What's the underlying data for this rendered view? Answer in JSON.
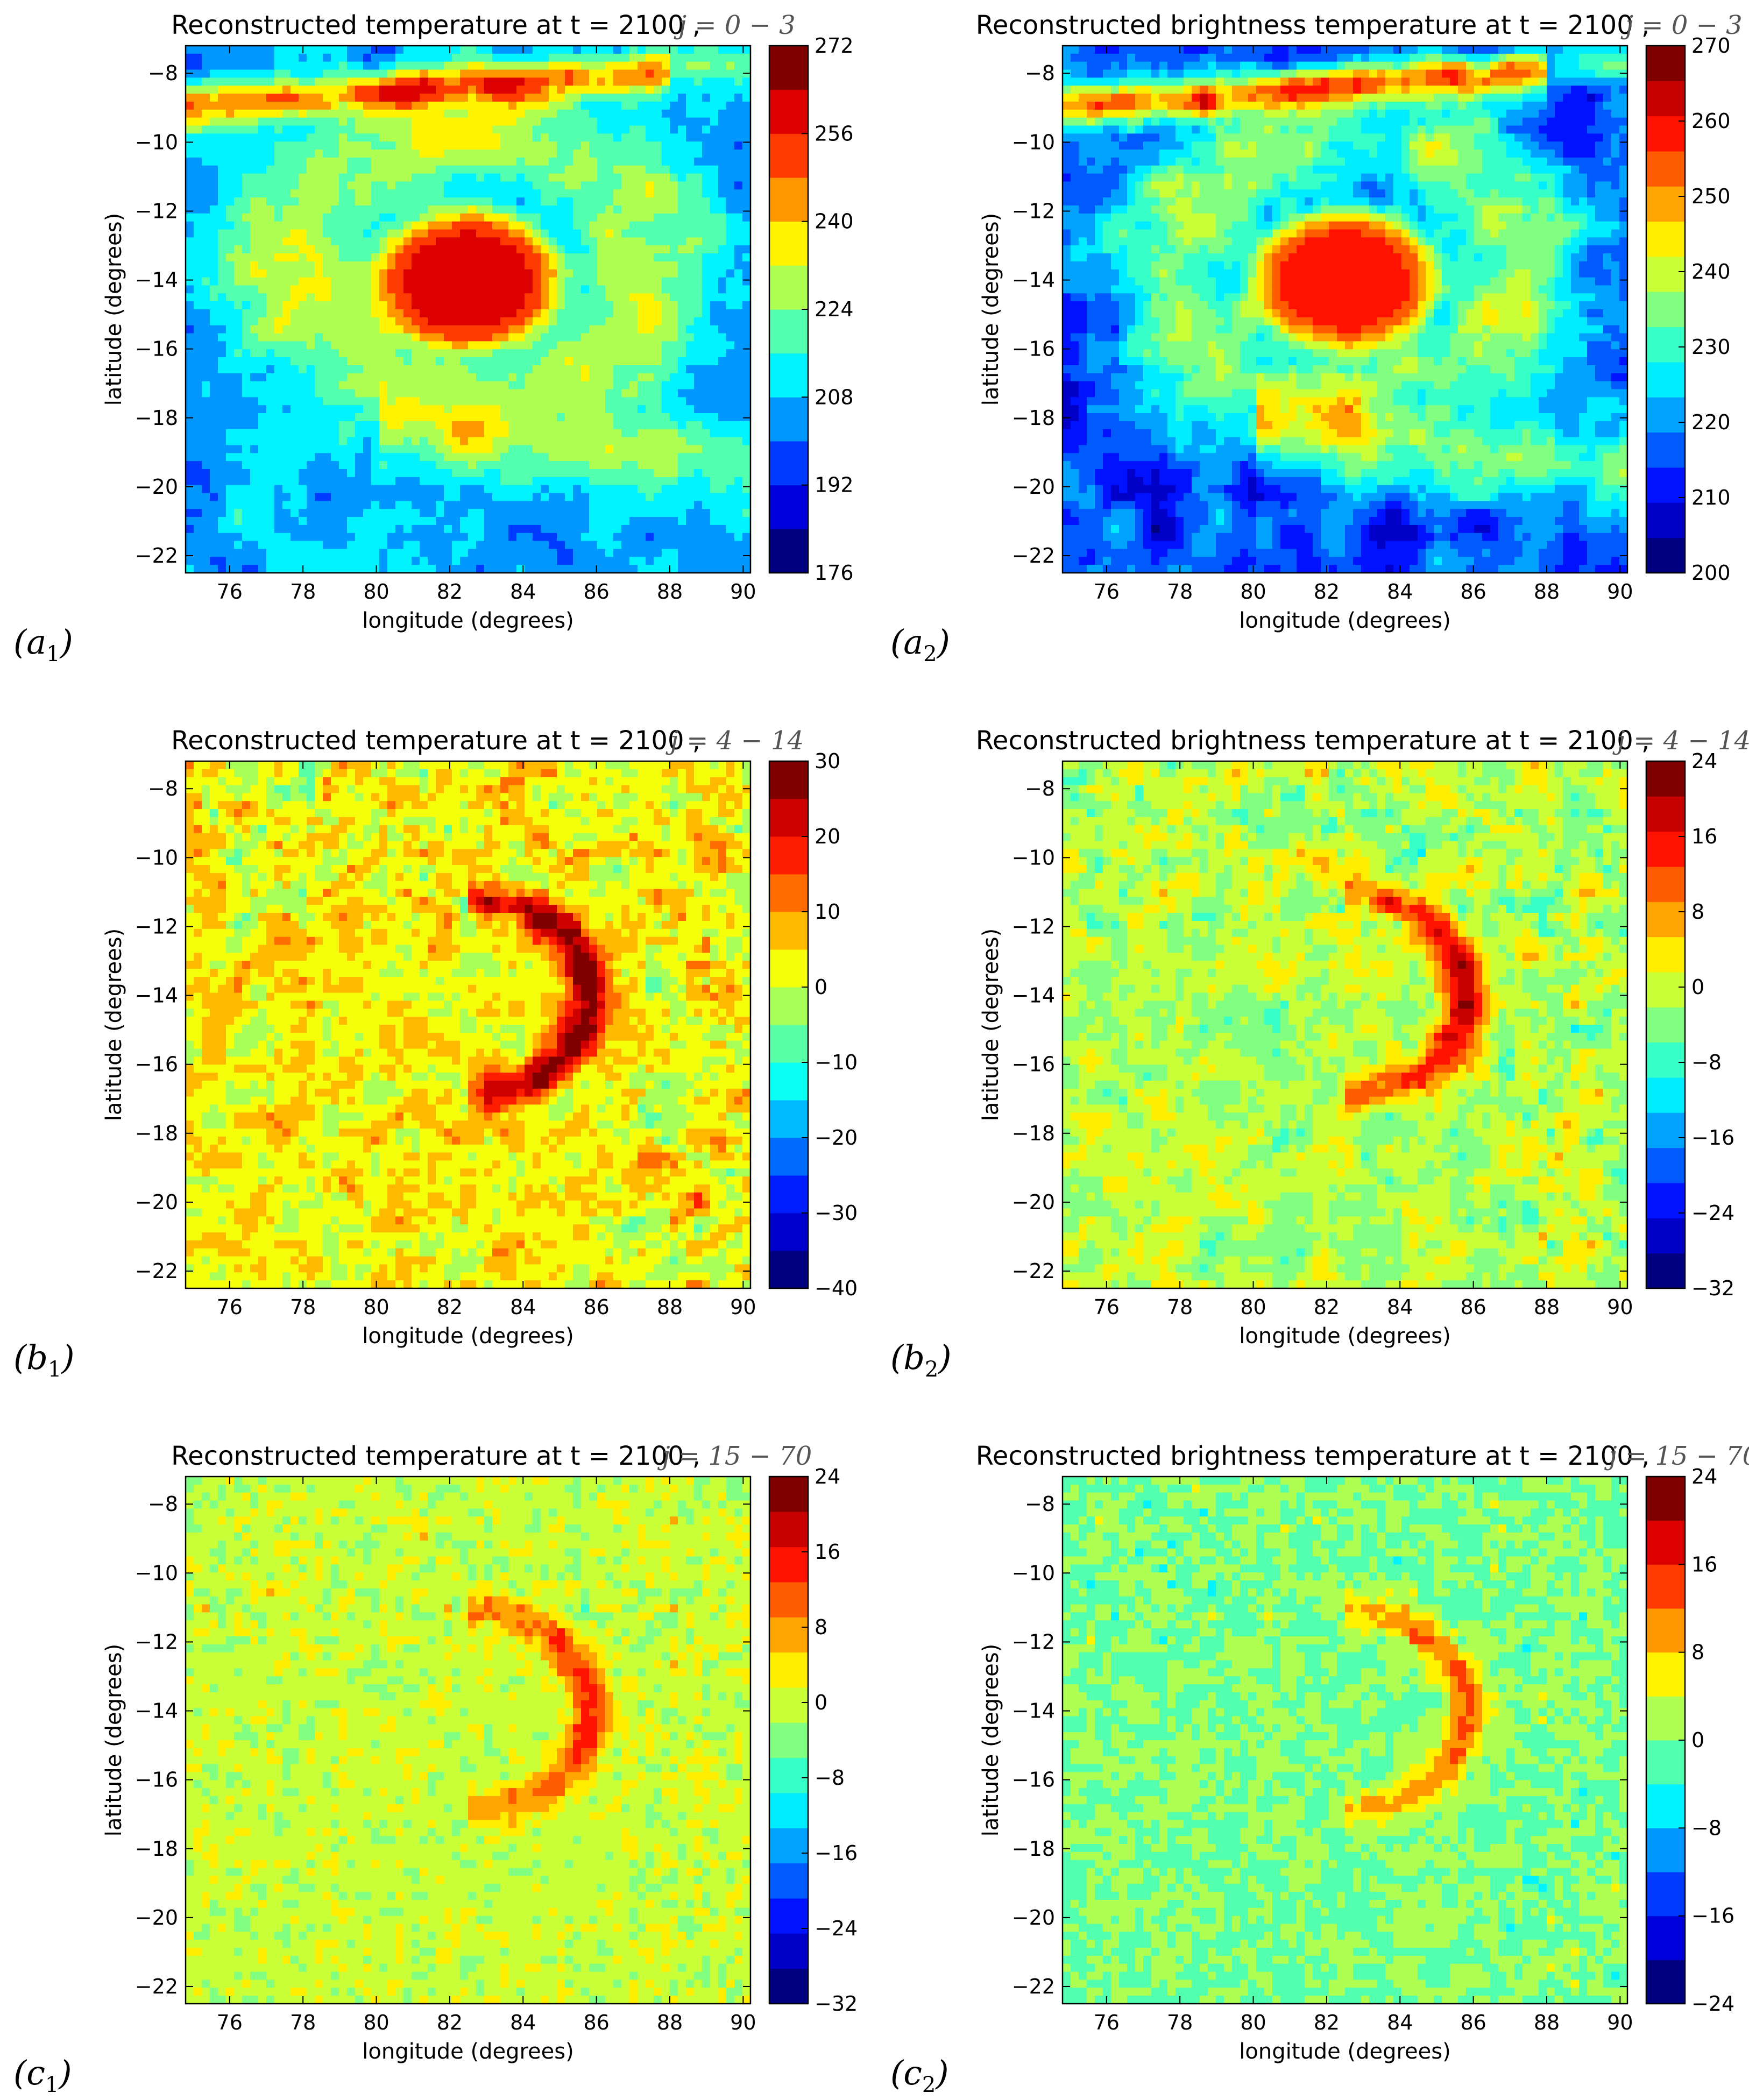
{
  "chart_data": [
    {
      "type": "heatmap",
      "panel_label": "a",
      "panel_sub": "1",
      "title": "Reconstructed temperature at t = 2100 ,",
      "title_math": "j = 0 − 3",
      "xlabel": "longitude (degrees)",
      "ylabel": "latitude (degrees)",
      "xlim": [
        74.8,
        90.2
      ],
      "ylim": [
        -22.5,
        -7.2
      ],
      "xticks": [
        "76",
        "78",
        "80",
        "82",
        "84",
        "86",
        "88",
        "90"
      ],
      "yticks": [
        "−8",
        "−10",
        "−12",
        "−14",
        "−16",
        "−18",
        "−20",
        "−22"
      ],
      "colorbar": {
        "min": 176,
        "max": 272,
        "levels": 12,
        "ticks": [
          "176",
          "192",
          "208",
          "224",
          "240",
          "256",
          "272"
        ]
      },
      "field": {
        "kind": "cyclone",
        "background": 205,
        "eye_value": 260,
        "eye_center": [
          82.5,
          -14.0
        ],
        "eye_radius": [
          2.6,
          2.1
        ],
        "band_value": 250,
        "band_lat": -8.4
      }
    },
    {
      "type": "heatmap",
      "panel_label": "a",
      "panel_sub": "2",
      "title": "Reconstructed brightness temperature at t = 2100 ,",
      "title_math": "j = 0 − 3",
      "xlabel": "longitude (degrees)",
      "ylabel": "latitude (degrees)",
      "xlim": [
        74.8,
        90.2
      ],
      "ylim": [
        -22.5,
        -7.2
      ],
      "xticks": [
        "76",
        "78",
        "80",
        "82",
        "84",
        "86",
        "88",
        "90"
      ],
      "yticks": [
        "−8",
        "−10",
        "−12",
        "−14",
        "−16",
        "−18",
        "−20",
        "−22"
      ],
      "colorbar": {
        "min": 200,
        "max": 275,
        "levels": 15,
        "ticks": [
          "200",
          "210",
          "220",
          "230",
          "240",
          "250",
          "260",
          "270"
        ]
      },
      "field": {
        "kind": "cyclone",
        "background": 216,
        "eye_value": 264,
        "eye_center": [
          82.5,
          -14.0
        ],
        "eye_radius": [
          2.6,
          2.1
        ],
        "band_value": 258,
        "band_lat": -8.4
      }
    },
    {
      "type": "heatmap",
      "panel_label": "b",
      "panel_sub": "1",
      "title": "Reconstructed temperature at t = 2100 ,",
      "title_math": "j = 4 − 14",
      "xlabel": "longitude (degrees)",
      "ylabel": "latitude (degrees)",
      "xlim": [
        74.8,
        90.2
      ],
      "ylim": [
        -22.5,
        -7.2
      ],
      "xticks": [
        "76",
        "78",
        "80",
        "82",
        "84",
        "86",
        "88",
        "90"
      ],
      "yticks": [
        "−8",
        "−10",
        "−12",
        "−14",
        "−16",
        "−18",
        "−20",
        "−22"
      ],
      "colorbar": {
        "min": -40,
        "max": 30,
        "levels": 14,
        "ticks": [
          "−40",
          "−30",
          "−20",
          "−10",
          "0",
          "10",
          "20",
          "30"
        ]
      },
      "field": {
        "kind": "anomaly",
        "background": 3,
        "noise": 9,
        "arc_value": 24
      }
    },
    {
      "type": "heatmap",
      "panel_label": "b",
      "panel_sub": "2",
      "title": "Reconstructed brightness temperature at t = 2100 ,",
      "title_math": "j = 4 − 14",
      "xlabel": "longitude (degrees)",
      "ylabel": "latitude (degrees)",
      "xlim": [
        74.8,
        90.2
      ],
      "ylim": [
        -22.5,
        -7.2
      ],
      "xticks": [
        "76",
        "78",
        "80",
        "82",
        "84",
        "86",
        "88",
        "90"
      ],
      "yticks": [
        "−8",
        "−10",
        "−12",
        "−14",
        "−16",
        "−18",
        "−20",
        "−22"
      ],
      "colorbar": {
        "min": -32,
        "max": 28,
        "levels": 15,
        "ticks": [
          "−32",
          "−24",
          "−16",
          "−8",
          "0",
          "8",
          "16",
          "24"
        ]
      },
      "field": {
        "kind": "anomaly",
        "background": 1,
        "noise": 7,
        "arc_value": 20
      }
    },
    {
      "type": "heatmap",
      "panel_label": "c",
      "panel_sub": "1",
      "title": "Reconstructed temperature at t = 2100 ,",
      "title_math": "j = 15 − 70",
      "xlabel": "longitude (degrees)",
      "ylabel": "latitude (degrees)",
      "xlim": [
        74.8,
        90.2
      ],
      "ylim": [
        -22.5,
        -7.2
      ],
      "xticks": [
        "76",
        "78",
        "80",
        "82",
        "84",
        "86",
        "88",
        "90"
      ],
      "yticks": [
        "−8",
        "−10",
        "−12",
        "−14",
        "−16",
        "−18",
        "−20",
        "−22"
      ],
      "colorbar": {
        "min": -32,
        "max": 28,
        "levels": 15,
        "ticks": [
          "−32",
          "−24",
          "−16",
          "−8",
          "0",
          "8",
          "16",
          "24"
        ]
      },
      "field": {
        "kind": "fine",
        "background": 2,
        "noise": 5,
        "arc_value": 14
      }
    },
    {
      "type": "heatmap",
      "panel_label": "c",
      "panel_sub": "2",
      "title": "Reconstructed brightness temperature at t = 2100 ,",
      "title_math": "j = 15 − 70",
      "xlabel": "longitude (degrees)",
      "ylabel": "latitude (degrees)",
      "xlim": [
        74.8,
        90.2
      ],
      "ylim": [
        -22.5,
        -7.2
      ],
      "xticks": [
        "76",
        "78",
        "80",
        "82",
        "84",
        "86",
        "88",
        "90"
      ],
      "yticks": [
        "−8",
        "−10",
        "−12",
        "−14",
        "−16",
        "−18",
        "−20",
        "−22"
      ],
      "colorbar": {
        "min": -24,
        "max": 24,
        "levels": 12,
        "ticks": [
          "−24",
          "−16",
          "−8",
          "0",
          "8",
          "16",
          "24"
        ]
      },
      "field": {
        "kind": "fine",
        "background": 0,
        "noise": 4,
        "arc_value": 12
      }
    }
  ]
}
